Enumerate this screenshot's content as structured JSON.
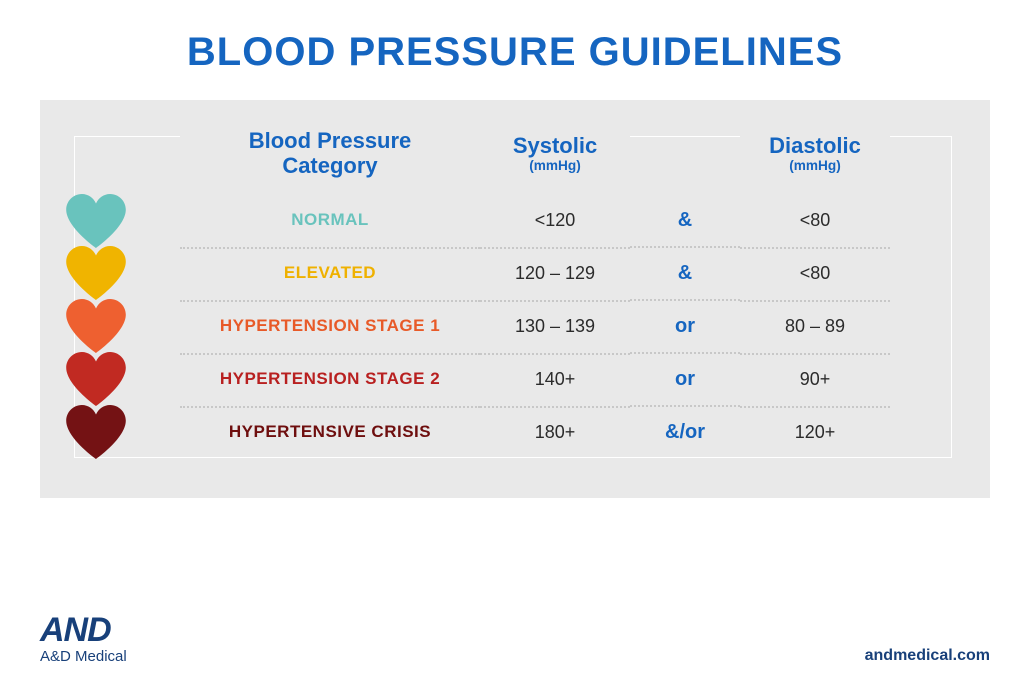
{
  "title": {
    "text": "BLOOD PRESSURE GUIDELINES",
    "color": "#1565c0",
    "fontsize": 40
  },
  "table": {
    "background": "#e9e9e9",
    "headers": {
      "category": {
        "label": "Blood Pressure\nCategory",
        "color": "#1565c0",
        "fontsize": 22
      },
      "systolic": {
        "label": "Systolic",
        "unit": "(mmHg)",
        "color": "#1565c0",
        "fontsize": 22
      },
      "diastolic": {
        "label": "Diastolic",
        "unit": "(mmHg)",
        "color": "#1565c0",
        "fontsize": 22
      }
    },
    "connector_color": "#1565c0",
    "value_color": "#2b2b2b",
    "value_fontsize": 18,
    "category_fontsize": 17,
    "dotted_divider_color": "#c8c8c8",
    "rows": [
      {
        "category": "NORMAL",
        "cat_color": "#69c3bd",
        "heart_color": "#69c3bd",
        "systolic": "<120",
        "connector": "&",
        "diastolic": "<80"
      },
      {
        "category": "ELEVATED",
        "cat_color": "#efb100",
        "heart_color": "#f0b400",
        "systolic": "120 – 129",
        "connector": "&",
        "diastolic": "<80"
      },
      {
        "category": "HYPERTENSION STAGE 1",
        "cat_color": "#e85a28",
        "heart_color": "#ee6030",
        "systolic": "130 – 139",
        "connector": "or",
        "diastolic": "80 – 89"
      },
      {
        "category": "HYPERTENSION STAGE 2",
        "cat_color": "#b82020",
        "heart_color": "#c12a22",
        "systolic": "140+",
        "connector": "or",
        "diastolic": "90+"
      },
      {
        "category": "HYPERTENSIVE CRISIS",
        "cat_color": "#6e0e0e",
        "heart_color": "#741214",
        "systolic": "180+",
        "connector": "&/or",
        "diastolic": "120+"
      }
    ]
  },
  "footer": {
    "brand_logo": "AND",
    "brand_name": "A&D Medical",
    "brand_color": "#18407a",
    "url": "andmedical.com",
    "url_color": "#18407a"
  }
}
